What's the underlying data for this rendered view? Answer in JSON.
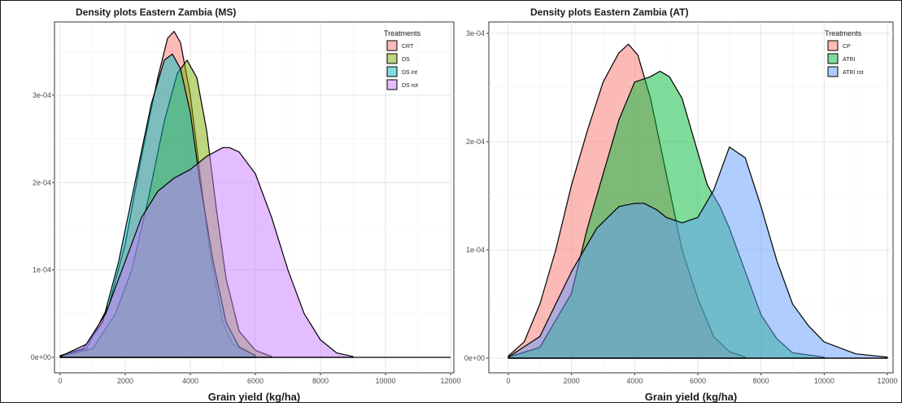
{
  "chart_data": [
    {
      "type": "area",
      "title": "Density plots Eastern Zambia (MS)",
      "xlabel": "Grain yield (kg/ha)",
      "ylabel": "",
      "xlim": [
        0,
        12000
      ],
      "ylim": [
        0,
        0.00038
      ],
      "x_ticks": [
        0,
        2000,
        4000,
        6000,
        8000,
        10000,
        12000
      ],
      "x_tick_labels": [
        "0",
        "2000",
        "4000",
        "6000",
        "8000",
        "10000",
        "12000"
      ],
      "y_ticks": [
        0,
        0.0001,
        0.0002,
        0.0003
      ],
      "y_tick_labels": [
        "0e+00",
        "1e-04",
        "2e-04",
        "3e-04"
      ],
      "grid": true,
      "legend": {
        "title": "Treatments",
        "position": "top-right"
      },
      "series": [
        {
          "name": "CRT",
          "color": "#f8766d",
          "x": [
            0,
            800,
            1500,
            2000,
            2500,
            3000,
            3300,
            3500,
            3700,
            4000,
            4300,
            4600,
            5000,
            5300,
            6000
          ],
          "y": [
            2e-06,
            1e-05,
            6e-05,
            0.00013,
            0.00023,
            0.00032,
            0.000365,
            0.000373,
            0.00036,
            0.0003,
            0.00021,
            0.00012,
            4e-05,
            1.5e-05,
            2e-06
          ]
        },
        {
          "name": "DS",
          "color": "#7cae00",
          "x": [
            0,
            1000,
            1700,
            2200,
            2700,
            3200,
            3600,
            3900,
            4200,
            4500,
            4800,
            5100,
            5500,
            6000,
            6500
          ],
          "y": [
            1e-06,
            1e-05,
            5e-05,
            0.0001,
            0.00018,
            0.00027,
            0.000325,
            0.00034,
            0.00032,
            0.00026,
            0.00017,
            9e-05,
            3e-05,
            8e-06,
            1e-06
          ]
        },
        {
          "name": "DS int",
          "color": "#00bfc4",
          "x": [
            0,
            700,
            1300,
            1800,
            2300,
            2800,
            3200,
            3450,
            3700,
            4000,
            4300,
            4700,
            5100,
            5500,
            6000
          ],
          "y": [
            2e-06,
            1e-05,
            4e-05,
            0.00011,
            0.0002,
            0.00029,
            0.00034,
            0.000347,
            0.00033,
            0.00028,
            0.0002,
            0.00011,
            4e-05,
            1.2e-05,
            2e-06
          ]
        },
        {
          "name": "DS rot",
          "color": "#c77cff",
          "x": [
            0,
            800,
            1400,
            2000,
            2500,
            3000,
            3500,
            4000,
            4500,
            5000,
            5200,
            5500,
            6000,
            6500,
            7000,
            7500,
            8000,
            8500,
            9000
          ],
          "y": [
            1e-06,
            1.5e-05,
            5e-05,
            0.00011,
            0.00016,
            0.00019,
            0.000205,
            0.000215,
            0.00023,
            0.00024,
            0.00024,
            0.000235,
            0.00021,
            0.00016,
            0.0001,
            5e-05,
            2e-05,
            5e-06,
            1e-06
          ]
        }
      ]
    },
    {
      "type": "area",
      "title": "Density plots Eastern Zambia (AT)",
      "xlabel": "Grain yield (kg/ha)",
      "ylabel": "",
      "xlim": [
        0,
        12000
      ],
      "ylim": [
        0,
        0.0003
      ],
      "x_ticks": [
        0,
        2000,
        4000,
        6000,
        8000,
        10000,
        12000
      ],
      "x_tick_labels": [
        "0",
        "2000",
        "4000",
        "6000",
        "8000",
        "10000",
        "12000"
      ],
      "y_ticks": [
        0,
        0.0001,
        0.0002,
        0.0003
      ],
      "y_tick_labels": [
        "0e+00",
        "1e-04",
        "2e-04",
        "3e-04"
      ],
      "grid": true,
      "legend": {
        "title": "Treatments",
        "position": "top-right"
      },
      "series": [
        {
          "name": "CP",
          "color": "#f8766d",
          "x": [
            0,
            500,
            1000,
            1500,
            2000,
            2500,
            3000,
            3500,
            3800,
            4100,
            4500,
            5000,
            5500,
            6000,
            6500,
            7000,
            7500
          ],
          "y": [
            2e-06,
            1.5e-05,
            5e-05,
            0.0001,
            0.00016,
            0.00021,
            0.000255,
            0.000282,
            0.00029,
            0.00028,
            0.00024,
            0.00017,
            0.0001,
            5.5e-05,
            2e-05,
            6e-06,
            1e-06
          ]
        },
        {
          "name": "ATRI",
          "color": "#00ba38",
          "x": [
            0,
            1000,
            2000,
            2500,
            3000,
            3500,
            4000,
            4500,
            4800,
            5100,
            5500,
            6000,
            6300,
            6700,
            7000,
            7500,
            8000,
            8500,
            9000,
            10000
          ],
          "y": [
            1e-06,
            1e-05,
            6e-05,
            0.00012,
            0.00017,
            0.00022,
            0.000255,
            0.00026,
            0.000265,
            0.00026,
            0.00024,
            0.00019,
            0.00016,
            0.00014,
            0.00012,
            8e-05,
            4e-05,
            1.8e-05,
            5e-06,
            1e-06
          ]
        },
        {
          "name": "ATRI rot",
          "color": "#619cff",
          "x": [
            0,
            1000,
            2000,
            2800,
            3500,
            4000,
            4300,
            4700,
            5000,
            5500,
            6000,
            6500,
            7000,
            7500,
            8000,
            8500,
            9000,
            9500,
            10000,
            11000,
            12000
          ],
          "y": [
            1e-06,
            2e-05,
            8e-05,
            0.00012,
            0.00014,
            0.000143,
            0.000143,
            0.000137,
            0.00013,
            0.000125,
            0.00013,
            0.000155,
            0.000195,
            0.000185,
            0.00014,
            9e-05,
            5e-05,
            3e-05,
            1.5e-05,
            4e-06,
            1e-06
          ]
        }
      ]
    }
  ]
}
